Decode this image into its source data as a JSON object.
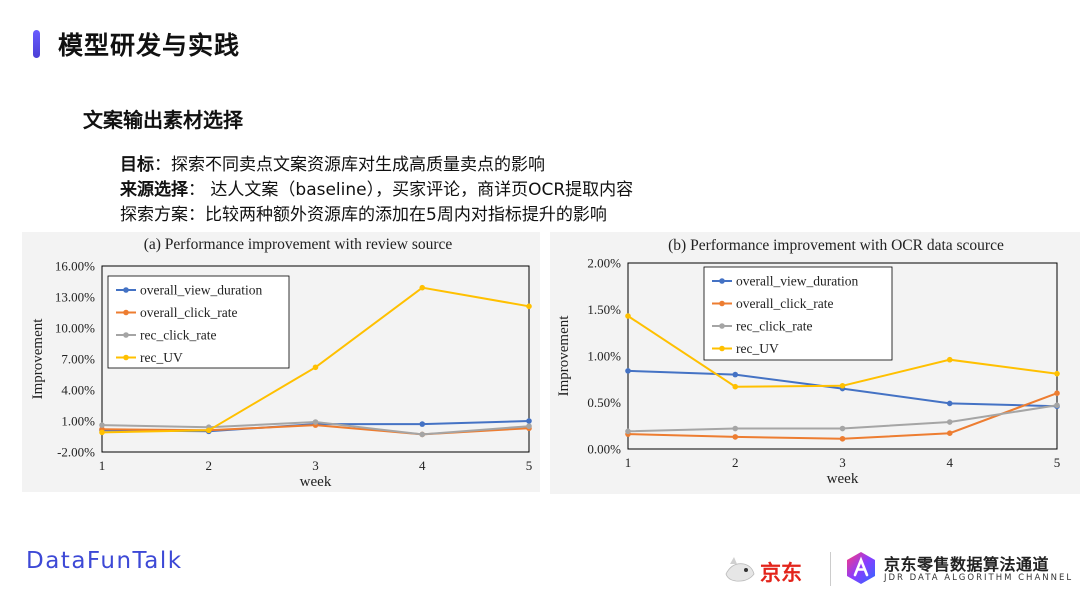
{
  "header": {
    "title": "模型研发与实践",
    "accent_color": "#5b4ef0"
  },
  "section": {
    "title": "文案输出素材选择"
  },
  "description": [
    {
      "label": "目标",
      "separator": "：",
      "text": "探索不同卖点文案资源库对生成高质量卖点的影响"
    },
    {
      "label": "来源选择",
      "separator": "： ",
      "text": "达人文案（baseline），买家评论，商详页OCR提取内容"
    },
    {
      "label": "探索方案",
      "separator": "：",
      "text": "比较两种额外资源库的添加在5周内对指标提升的影响"
    }
  ],
  "chart_data": [
    {
      "type": "line",
      "title": "(a) Performance improvement with review source",
      "xlabel": "week",
      "ylabel": "Improvement",
      "x": [
        1,
        2,
        3,
        4,
        5
      ],
      "ylim": [
        -2,
        16
      ],
      "yticks": [
        -2,
        1,
        4,
        7,
        10,
        13,
        16
      ],
      "ytick_labels": [
        "-2.00%",
        "1.00%",
        "4.00%",
        "7.00%",
        "10.00%",
        "13.00%",
        "16.00%"
      ],
      "legend_position": "top-left",
      "grid": false,
      "series": [
        {
          "name": "overall_view_duration",
          "color": "#4472c4",
          "values": [
            0.1,
            0.0,
            0.7,
            0.7,
            1.0
          ]
        },
        {
          "name": "overall_click_rate",
          "color": "#ed7d31",
          "values": [
            0.2,
            0.1,
            0.6,
            -0.3,
            0.3
          ]
        },
        {
          "name": "rec_click_rate",
          "color": "#a5a5a5",
          "values": [
            0.6,
            0.4,
            0.9,
            -0.3,
            0.5
          ]
        },
        {
          "name": "rec_UV",
          "color": "#ffc000",
          "values": [
            -0.1,
            0.1,
            6.2,
            13.9,
            12.1
          ]
        }
      ]
    },
    {
      "type": "line",
      "title": "(b) Performance improvement with OCR data scource",
      "xlabel": "week",
      "ylabel": "Improvement",
      "x": [
        1,
        2,
        3,
        4,
        5
      ],
      "ylim": [
        0,
        2
      ],
      "yticks": [
        0,
        0.5,
        1,
        1.5,
        2
      ],
      "ytick_labels": [
        "0.00%",
        "0.50%",
        "1.00%",
        "1.50%",
        "2.00%"
      ],
      "legend_position": "top-center",
      "grid": false,
      "series": [
        {
          "name": "overall_view_duration",
          "color": "#4472c4",
          "values": [
            0.84,
            0.8,
            0.65,
            0.49,
            0.46
          ]
        },
        {
          "name": "overall_click_rate",
          "color": "#ed7d31",
          "values": [
            0.16,
            0.13,
            0.11,
            0.17,
            0.6
          ]
        },
        {
          "name": "rec_click_rate",
          "color": "#a5a5a5",
          "values": [
            0.19,
            0.22,
            0.22,
            0.29,
            0.47
          ]
        },
        {
          "name": "rec_UV",
          "color": "#ffc000",
          "values": [
            1.43,
            0.67,
            0.68,
            0.96,
            0.81
          ]
        }
      ]
    }
  ],
  "footer": {
    "brand": "DataFunTalk",
    "brand_color": "#3d49d6",
    "jd_logo_text": "京东",
    "jdr_name_cn": "京东零售数据算法通道",
    "jdr_name_en": "JDR DATA ALGORITHM CHANNEL"
  }
}
